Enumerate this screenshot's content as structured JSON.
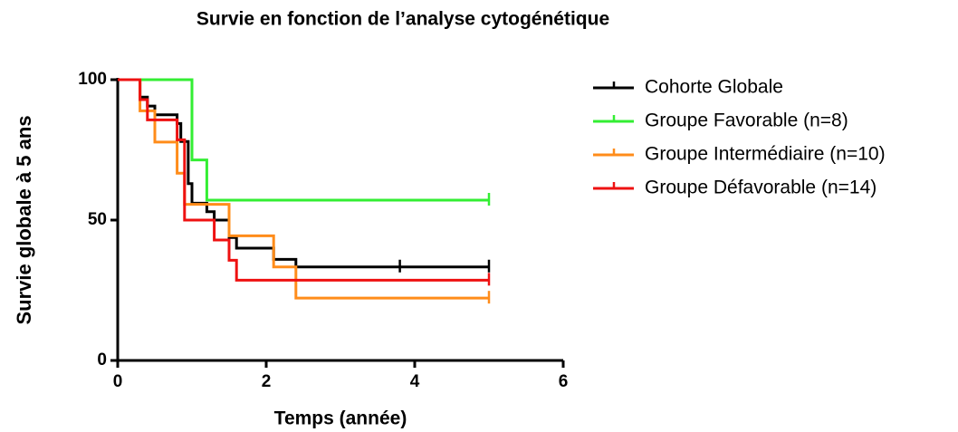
{
  "chart_data": {
    "type": "step",
    "title": "Survie en fonction de l’analyse cytogénétique",
    "xlabel": "Temps (année)",
    "ylabel": "Survie globale à 5 ans",
    "xlim": [
      0,
      6
    ],
    "xticks": [
      0,
      2,
      4,
      6
    ],
    "ylim": [
      0,
      100
    ],
    "yticks": [
      0,
      50,
      100
    ],
    "legend": "right",
    "series": [
      {
        "name": "Cohorte Globale",
        "color": "#000000",
        "x": [
          0,
          0.3,
          0.4,
          0.5,
          0.8,
          0.85,
          0.95,
          1.0,
          1.2,
          1.3,
          1.5,
          1.6,
          2.1,
          2.4,
          5
        ],
        "values": [
          100,
          93.8,
          90.6,
          87.5,
          84.4,
          78,
          63,
          56,
          53,
          50,
          43.8,
          40,
          36,
          33.3,
          33.3
        ],
        "censored": [
          3.8,
          5
        ]
      },
      {
        "name": "Groupe Favorable (n=8)",
        "color": "#33ee33",
        "x": [
          0,
          1.0,
          1.2,
          5
        ],
        "values": [
          100,
          71.4,
          57.1,
          57.1
        ],
        "censored": [
          5
        ]
      },
      {
        "name": "Groupe Intermédiaire (n=10)",
        "color": "#ff8c1a",
        "x": [
          0,
          0.3,
          0.5,
          0.8,
          0.9,
          1.5,
          2.1,
          2.4,
          5
        ],
        "values": [
          100,
          88.9,
          77.8,
          66.7,
          55.6,
          44.4,
          33.3,
          22.2,
          22.2
        ],
        "censored": [
          5
        ]
      },
      {
        "name": "Groupe Défavorable (n=14)",
        "color": "#ee1111",
        "x": [
          0,
          0.3,
          0.4,
          0.8,
          0.9,
          1.3,
          1.5,
          1.6,
          5
        ],
        "values": [
          100,
          92.9,
          85.7,
          78.6,
          50,
          42.9,
          35.7,
          28.6,
          28.6
        ],
        "censored": [
          5
        ]
      }
    ]
  }
}
